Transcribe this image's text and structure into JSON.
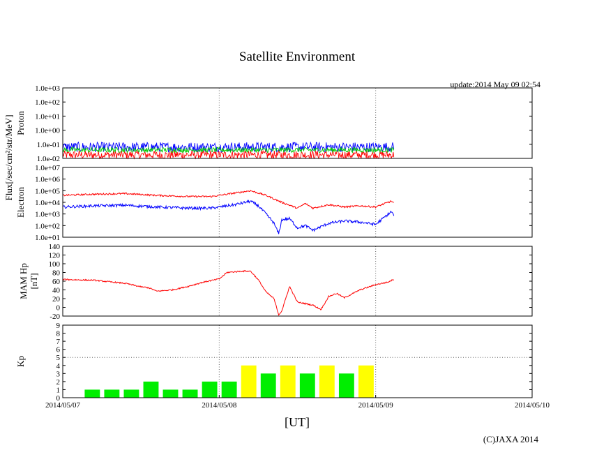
{
  "header": {
    "title": "Satellite Environment",
    "update": "update:2014 May 09 02:54",
    "copyright": "(C)JAXA 2014"
  },
  "chart_data": {
    "type": "line",
    "x_axis": {
      "label": "[UT]",
      "ticks": [
        "2014/05/07",
        "2014/05/08",
        "2014/05/09",
        "2014/05/10"
      ],
      "range_days": [
        0,
        3
      ]
    },
    "shared_ylabel": "Flux[/sec/cm²/str/MeV]",
    "panels": [
      {
        "name": "proton",
        "ylabel": "Proton",
        "scale": "log",
        "yticks": [
          "1.0e-02",
          "1.0e-01",
          "1.0e+00",
          "1.0e+01",
          "1.0e+02",
          "1.0e+03"
        ],
        "ylim_exp": [
          -2,
          3
        ],
        "colors": {
          "high": "#ff0000",
          "mid": "#0000ff",
          "low": "#00cc00"
        },
        "series": [
          {
            "name": "red",
            "color": "#ff0000",
            "x": [
              0.0,
              2.12
            ],
            "log10": [
              -1.75,
              -1.75
            ]
          },
          {
            "name": "blue",
            "color": "#0000ff",
            "x": [
              0.0,
              2.12
            ],
            "log10": [
              -1.2,
              -1.2
            ]
          },
          {
            "name": "green",
            "color": "#00cc00",
            "x": [
              0.0,
              2.12
            ],
            "log10": [
              -1.4,
              -1.4
            ]
          }
        ]
      },
      {
        "name": "electron",
        "ylabel": "Electron",
        "scale": "log",
        "yticks": [
          "1.0e+01",
          "1.0e+02",
          "1.0e+03",
          "1.0e+04",
          "1.0e+05",
          "1.0e+06",
          "1.0e+07"
        ],
        "ylim_exp": [
          1,
          7
        ],
        "series": [
          {
            "name": "red",
            "color": "#ff0000",
            "x": [
              0.0,
              0.2,
              0.4,
              0.6,
              0.8,
              0.95,
              1.0,
              1.1,
              1.2,
              1.3,
              1.4,
              1.5,
              1.55,
              1.6,
              1.7,
              1.8,
              1.9,
              2.0,
              2.1,
              2.12
            ],
            "log10": [
              4.6,
              4.7,
              4.75,
              4.6,
              4.5,
              4.5,
              4.6,
              4.8,
              5.0,
              4.6,
              4.0,
              3.5,
              3.9,
              3.5,
              3.8,
              3.6,
              3.7,
              3.6,
              4.1,
              3.9
            ]
          },
          {
            "name": "blue",
            "color": "#0000ff",
            "x": [
              0.0,
              0.2,
              0.4,
              0.6,
              0.8,
              0.95,
              1.0,
              1.1,
              1.2,
              1.25,
              1.3,
              1.35,
              1.38,
              1.4,
              1.45,
              1.5,
              1.55,
              1.6,
              1.7,
              1.8,
              1.9,
              2.0,
              2.1,
              2.12
            ],
            "log10": [
              3.6,
              3.7,
              3.75,
              3.6,
              3.5,
              3.5,
              3.6,
              3.8,
              4.1,
              3.7,
              3.0,
              2.2,
              1.3,
              2.5,
              2.6,
              1.8,
              2.0,
              1.6,
              2.2,
              2.4,
              2.3,
              2.1,
              3.2,
              2.8
            ]
          }
        ]
      },
      {
        "name": "mam_hp",
        "ylabel": "MAM Hp",
        "ylabel2": "[nT]",
        "scale": "linear",
        "yticks": [
          "-20",
          "0",
          "20",
          "40",
          "60",
          "80",
          "100",
          "120",
          "140"
        ],
        "ylim": [
          -20,
          140
        ],
        "series": [
          {
            "name": "Hp",
            "color": "#ff0000",
            "x": [
              0.0,
              0.2,
              0.4,
              0.5,
              0.55,
              0.6,
              0.7,
              0.8,
              0.9,
              1.0,
              1.05,
              1.15,
              1.2,
              1.25,
              1.3,
              1.35,
              1.38,
              1.4,
              1.45,
              1.5,
              1.6,
              1.65,
              1.7,
              1.75,
              1.8,
              1.9,
              2.0,
              2.08,
              2.12
            ],
            "values": [
              64,
              62,
              55,
              47,
              45,
              37,
              40,
              48,
              58,
              65,
              80,
              83,
              83,
              63,
              35,
              20,
              -17,
              -8,
              48,
              12,
              5,
              -5,
              25,
              32,
              22,
              40,
              52,
              58,
              65
            ]
          }
        ]
      },
      {
        "name": "kp",
        "ylabel": "Kp",
        "scale": "linear",
        "type": "bar",
        "yticks": [
          "0",
          "1",
          "2",
          "3",
          "4",
          "5",
          "6",
          "7",
          "8",
          "9"
        ],
        "ylim": [
          0,
          9
        ],
        "threshold": 5,
        "colors": {
          "quiet": "#00ee00",
          "active": "#ffff00"
        },
        "bars": [
          {
            "x": 0.0,
            "value": 0
          },
          {
            "x": 0.125,
            "value": 1
          },
          {
            "x": 0.25,
            "value": 1
          },
          {
            "x": 0.375,
            "value": 1
          },
          {
            "x": 0.5,
            "value": 2
          },
          {
            "x": 0.625,
            "value": 1
          },
          {
            "x": 0.75,
            "value": 1
          },
          {
            "x": 0.875,
            "value": 2
          },
          {
            "x": 1.0,
            "value": 2
          },
          {
            "x": 1.125,
            "value": 4
          },
          {
            "x": 1.25,
            "value": 3
          },
          {
            "x": 1.375,
            "value": 4
          },
          {
            "x": 1.5,
            "value": 3
          },
          {
            "x": 1.625,
            "value": 4
          },
          {
            "x": 1.75,
            "value": 3
          },
          {
            "x": 1.875,
            "value": 4
          }
        ]
      }
    ]
  }
}
